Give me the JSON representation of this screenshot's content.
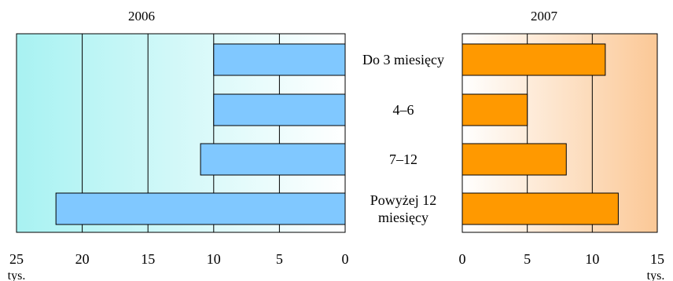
{
  "chart_data": [
    {
      "type": "bar",
      "orientation": "horizontal",
      "title": "2006",
      "direction": "reversed",
      "categories": [
        "Do 3 miesięcy",
        "4–6",
        "7–12",
        "Powyżej 12 miesięcy"
      ],
      "values": [
        10,
        10,
        11,
        22
      ],
      "xlim": [
        0,
        25
      ],
      "ticks": [
        25,
        20,
        15,
        10,
        5,
        0
      ],
      "unit": "tys.",
      "colors": {
        "bar": "#80c8ff",
        "gradient_from": "#a8f2f2",
        "gradient_to": "#ffffff"
      },
      "grid": true
    },
    {
      "type": "bar",
      "orientation": "horizontal",
      "title": "2007",
      "direction": "normal",
      "categories": [
        "Do 3 miesięcy",
        "4–6",
        "7–12",
        "Powyżej 12 miesięcy"
      ],
      "values": [
        11,
        5,
        8,
        12
      ],
      "xlim": [
        0,
        15
      ],
      "ticks": [
        0,
        5,
        10,
        15
      ],
      "unit": "tys.",
      "colors": {
        "bar": "#ff9900",
        "gradient_from": "#ffffff",
        "gradient_to": "#fbc896"
      },
      "grid": true
    }
  ],
  "category_labels": [
    [
      "Do 3 miesięcy"
    ],
    [
      "4–6"
    ],
    [
      "7–12"
    ],
    [
      "Powyżej 12",
      "miesięcy"
    ]
  ]
}
